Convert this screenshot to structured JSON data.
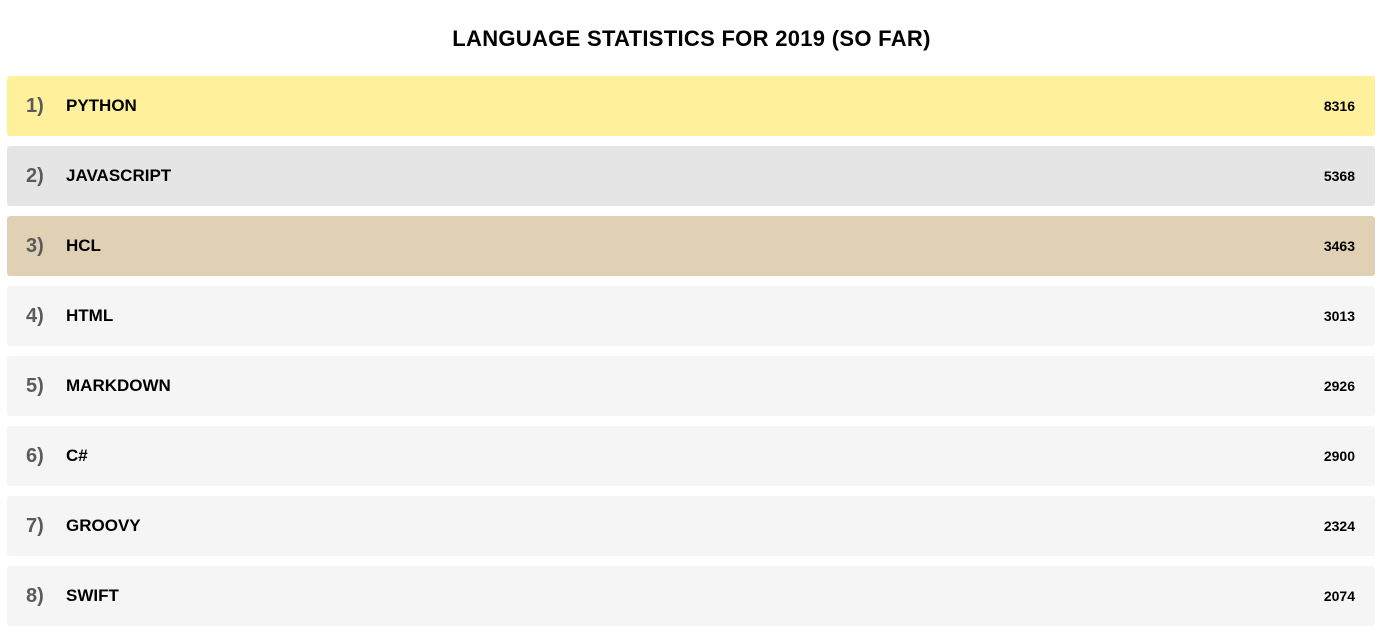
{
  "title": "LANGUAGE STATISTICS FOR 2019 (SO FAR)",
  "rows": [
    {
      "rank": "1)",
      "name": "PYTHON",
      "count": "8316",
      "color": "#fff09b"
    },
    {
      "rank": "2)",
      "name": "JAVASCRIPT",
      "count": "5368",
      "color": "#e5e5e5"
    },
    {
      "rank": "3)",
      "name": "HCL",
      "count": "3463",
      "color": "#e0d1b5"
    },
    {
      "rank": "4)",
      "name": "HTML",
      "count": "3013",
      "color": "#f5f5f5"
    },
    {
      "rank": "5)",
      "name": "MARKDOWN",
      "count": "2926",
      "color": "#f5f5f5"
    },
    {
      "rank": "6)",
      "name": "C#",
      "count": "2900",
      "color": "#f5f5f5"
    },
    {
      "rank": "7)",
      "name": "GROOVY",
      "count": "2324",
      "color": "#f5f5f5"
    },
    {
      "rank": "8)",
      "name": "SWIFT",
      "count": "2074",
      "color": "#f5f5f5"
    }
  ]
}
